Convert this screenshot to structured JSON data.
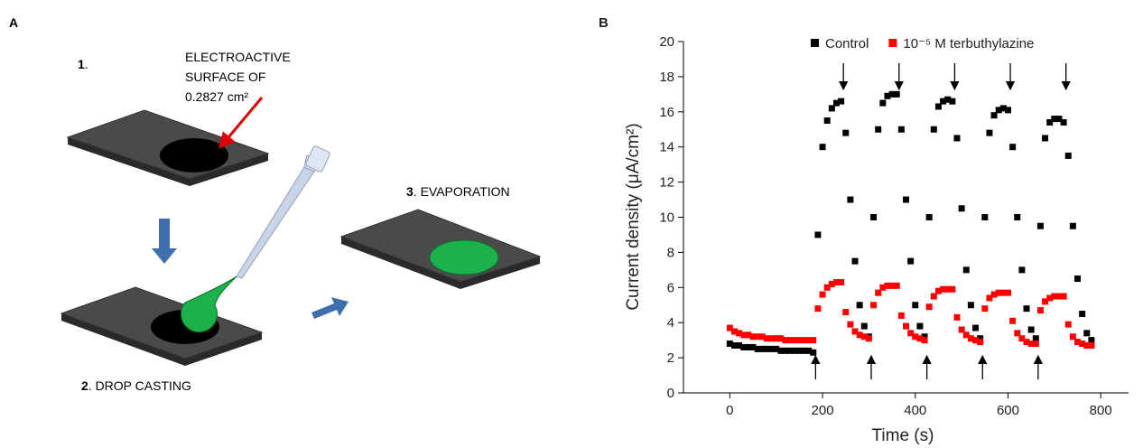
{
  "panel_a": {
    "label": "A",
    "step1": {
      "number": "1",
      "text": "."
    },
    "surface_note": [
      "ELECTROACTIVE",
      "SURFACE OF",
      "0.2827 cm²"
    ],
    "step2": {
      "number": "2",
      "text": ". DROP CASTING"
    },
    "step3": {
      "number": "3",
      "text": ". EVAPORATION"
    }
  },
  "chart_data": {
    "type": "scatter",
    "panel_label": "B",
    "x_label": "Time (s)",
    "y_label": "Current density (μA/cm²)",
    "xlim": [
      -100,
      860
    ],
    "xticks": [
      0,
      200,
      400,
      600,
      800
    ],
    "ylim": [
      0,
      20
    ],
    "yticks": [
      0,
      2,
      4,
      6,
      8,
      10,
      12,
      14,
      16,
      18,
      20
    ],
    "arrows_up_x": [
      185,
      305,
      425,
      545,
      665
    ],
    "arrows_down_x": [
      245,
      365,
      485,
      605,
      725
    ],
    "x": [
      0,
      10,
      20,
      30,
      40,
      50,
      60,
      70,
      80,
      90,
      100,
      110,
      120,
      130,
      140,
      150,
      160,
      170,
      180,
      190,
      200,
      210,
      220,
      230,
      240,
      250,
      260,
      270,
      280,
      290,
      300,
      310,
      320,
      330,
      340,
      350,
      360,
      370,
      380,
      390,
      400,
      410,
      420,
      430,
      440,
      450,
      460,
      470,
      480,
      490,
      500,
      510,
      520,
      530,
      540,
      550,
      560,
      570,
      580,
      590,
      600,
      610,
      620,
      630,
      640,
      650,
      660,
      670,
      680,
      690,
      700,
      710,
      720,
      730,
      740,
      750,
      760,
      770,
      780
    ],
    "series": [
      {
        "name": "Control",
        "color": "#000000",
        "values": [
          2.8,
          2.7,
          2.7,
          2.6,
          2.6,
          2.6,
          2.5,
          2.5,
          2.5,
          2.5,
          2.5,
          2.4,
          2.4,
          2.4,
          2.4,
          2.4,
          2.4,
          2.4,
          2.3,
          9,
          14,
          15.5,
          16.2,
          16.5,
          16.6,
          14.8,
          11,
          7.5,
          5,
          3.8,
          3.2,
          10,
          15,
          16.5,
          16.9,
          17,
          17,
          15,
          11,
          7.5,
          5,
          3.8,
          3.2,
          10,
          15,
          16.3,
          16.6,
          16.7,
          16.6,
          14.5,
          10.5,
          7,
          5,
          3.7,
          3.1,
          10,
          14.8,
          15.8,
          16.1,
          16.2,
          16.1,
          14,
          10,
          7,
          4.8,
          3.6,
          3.1,
          9.5,
          14.5,
          15.4,
          15.6,
          15.6,
          15.4,
          13.5,
          9.5,
          6.5,
          4.5,
          3.4,
          3.0
        ]
      },
      {
        "name": "10⁻⁵ M terbuthylazine",
        "color": "#ff0000",
        "values": [
          3.7,
          3.5,
          3.4,
          3.3,
          3.3,
          3.2,
          3.2,
          3.2,
          3.1,
          3.1,
          3.1,
          3.1,
          3.0,
          3.0,
          3.0,
          3.0,
          3.0,
          3.0,
          3.0,
          4.8,
          5.6,
          6,
          6.2,
          6.3,
          6.3,
          4.6,
          3.9,
          3.5,
          3.3,
          3.2,
          3.1,
          5,
          5.7,
          6,
          6.1,
          6.1,
          6.1,
          4.4,
          3.8,
          3.4,
          3.2,
          3.1,
          3.0,
          4.9,
          5.5,
          5.8,
          5.9,
          5.9,
          5.9,
          4.3,
          3.6,
          3.3,
          3.1,
          3.0,
          2.9,
          4.8,
          5.4,
          5.6,
          5.7,
          5.7,
          5.7,
          4.1,
          3.4,
          3.1,
          2.9,
          2.8,
          2.8,
          4.7,
          5.2,
          5.4,
          5.5,
          5.5,
          5.5,
          3.9,
          3.2,
          2.9,
          2.8,
          2.7,
          2.7
        ]
      }
    ]
  }
}
